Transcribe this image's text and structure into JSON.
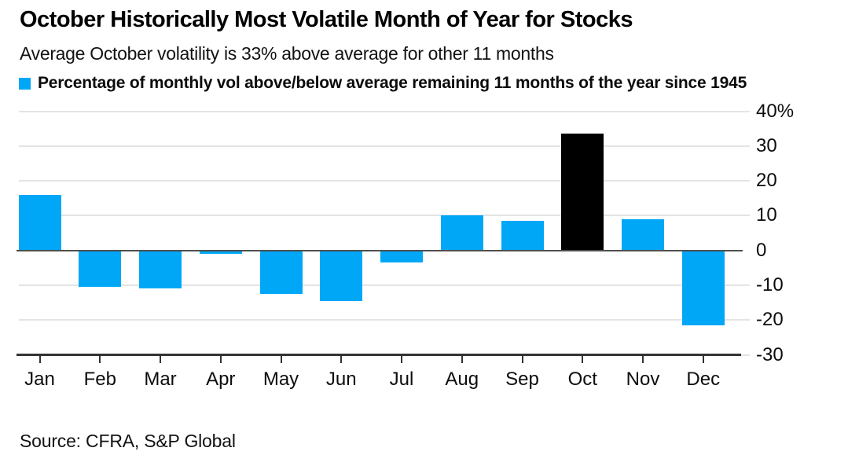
{
  "header": {
    "title": "October Historically Most Volatile Month of Year for Stocks",
    "subtitle": "Average October volatility is 33% above average for other 11 months"
  },
  "legend": {
    "swatch_color": "#00A7F7",
    "label": "Percentage of monthly vol above/below average remaining 11 months of the year since 1945"
  },
  "chart_data": {
    "type": "bar",
    "title": "October Historically Most Volatile Month of Year for Stocks",
    "subtitle": "Average October volatility is 33% above average for other 11 months",
    "unit": "percent",
    "categories": [
      "Jan",
      "Feb",
      "Mar",
      "Apr",
      "May",
      "Jun",
      "Jul",
      "Aug",
      "Sep",
      "Oct",
      "Nov",
      "Dec"
    ],
    "values": [
      16,
      -10.5,
      -11,
      -1,
      -12.5,
      -14.5,
      -3.5,
      10,
      8.5,
      33.5,
      9,
      -21.5
    ],
    "bar_color": "#00A7F7",
    "highlight": {
      "category": "Oct",
      "color": "#000000"
    },
    "xlabel": "",
    "ylabel": "",
    "ylim": [
      -30,
      40
    ],
    "yticks": [
      {
        "value": 40,
        "label": "40%"
      },
      {
        "value": 30,
        "label": "30"
      },
      {
        "value": 20,
        "label": "20"
      },
      {
        "value": 10,
        "label": "10"
      },
      {
        "value": 0,
        "label": "0"
      },
      {
        "value": -10,
        "label": "-10"
      },
      {
        "value": -20,
        "label": "-20"
      },
      {
        "value": -30,
        "label": "-30"
      }
    ],
    "grid": "horizontal",
    "y_axis_side": "right",
    "legend_position": "top-left",
    "colors": {
      "gridline": "#E4E4E4",
      "zero_line": "#4F4F4F",
      "axis_line": "#333333",
      "text": "#0D0D0D"
    }
  },
  "source": {
    "label": "Source: CFRA, S&P Global"
  }
}
